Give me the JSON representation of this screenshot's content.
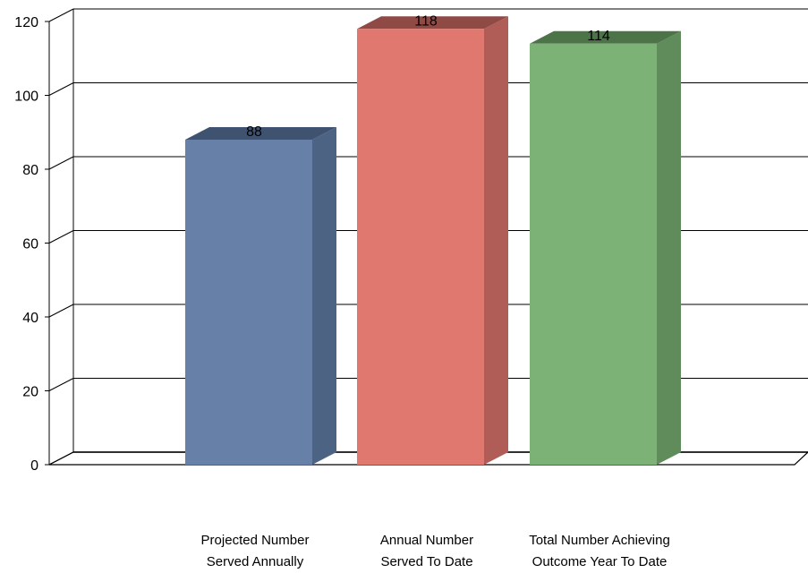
{
  "chart_data": {
    "type": "bar",
    "style": "3d-column",
    "categories": [
      [
        "Projected Number",
        "Served Annually"
      ],
      [
        "Annual Number",
        "Served To Date"
      ],
      [
        "Total Number Achieving",
        "Outcome Year To Date"
      ]
    ],
    "values": [
      88,
      118,
      114
    ],
    "data_labels": [
      "88",
      "118",
      "114"
    ],
    "ylim": [
      0,
      120
    ],
    "yticks": [
      0,
      20,
      40,
      60,
      80,
      100,
      120
    ],
    "grid": true,
    "legend": "none",
    "colors": {
      "bars": [
        "#6680A8",
        "#E07870",
        "#7DB277"
      ],
      "bar_sides": [
        "#4D6384",
        "#B15D57",
        "#5F8C5A"
      ],
      "bar_tops": [
        "#3F5270",
        "#8F4A45",
        "#4D7449"
      ]
    }
  }
}
